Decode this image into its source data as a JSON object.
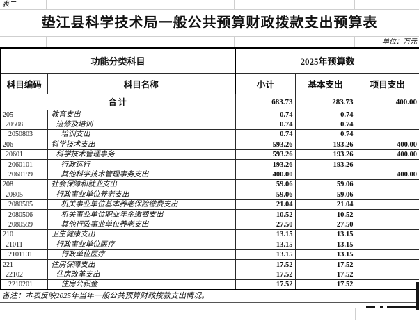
{
  "page": {
    "table_label": "表二",
    "title": "垫江县科学技术局一般公共预算财政拨款支出预算表",
    "unit_note": "单位：万元",
    "footer_note": "备注：本表反映2025年当年一般公共预算财政拨款支出情况。"
  },
  "colors": {
    "paper": "#ffffff",
    "ink": "#111111",
    "faint_grid": "#cfcfcf"
  },
  "table": {
    "header_group": {
      "left": "功能分类科目",
      "right": "2025年预算数"
    },
    "columns": [
      "科目编码",
      "科目名称",
      "小计",
      "基本支出",
      "项目支出"
    ],
    "total_row": {
      "label": "合计",
      "subtotal": "683.73",
      "basic": "283.73",
      "project": "400.00"
    },
    "rows": [
      {
        "code": "205",
        "name": "教育支出",
        "level": 0,
        "subtotal": "0.74",
        "basic": "0.74",
        "project": ""
      },
      {
        "code": "20508",
        "name": "进修及培训",
        "level": 1,
        "subtotal": "0.74",
        "basic": "0.74",
        "project": ""
      },
      {
        "code": "2050803",
        "name": "培训支出",
        "level": 2,
        "subtotal": "0.74",
        "basic": "0.74",
        "project": ""
      },
      {
        "code": "206",
        "name": "科学技术支出",
        "level": 0,
        "subtotal": "593.26",
        "basic": "193.26",
        "project": "400.00"
      },
      {
        "code": "20601",
        "name": "科学技术管理事务",
        "level": 1,
        "subtotal": "593.26",
        "basic": "193.26",
        "project": "400.00"
      },
      {
        "code": "2060101",
        "name": "行政运行",
        "level": 2,
        "subtotal": "193.26",
        "basic": "193.26",
        "project": ""
      },
      {
        "code": "2060199",
        "name": "其他科学技术管理事务支出",
        "level": 2,
        "subtotal": "400.00",
        "basic": "",
        "project": "400.00"
      },
      {
        "code": "208",
        "name": "社会保障和就业支出",
        "level": 0,
        "subtotal": "59.06",
        "basic": "59.06",
        "project": ""
      },
      {
        "code": "20805",
        "name": "行政事业单位养老支出",
        "level": 1,
        "subtotal": "59.06",
        "basic": "59.06",
        "project": ""
      },
      {
        "code": "2080505",
        "name": "机关事业单位基本养老保险缴费支出",
        "level": 2,
        "subtotal": "21.04",
        "basic": "21.04",
        "project": ""
      },
      {
        "code": "2080506",
        "name": "机关事业单位职业年金缴费支出",
        "level": 2,
        "subtotal": "10.52",
        "basic": "10.52",
        "project": ""
      },
      {
        "code": "2080599",
        "name": "其他行政事业单位养老支出",
        "level": 2,
        "subtotal": "27.50",
        "basic": "27.50",
        "project": ""
      },
      {
        "code": "210",
        "name": "卫生健康支出",
        "level": 0,
        "subtotal": "13.15",
        "basic": "13.15",
        "project": ""
      },
      {
        "code": "21011",
        "name": "行政事业单位医疗",
        "level": 1,
        "subtotal": "13.15",
        "basic": "13.15",
        "project": ""
      },
      {
        "code": "2101101",
        "name": "行政单位医疗",
        "level": 2,
        "subtotal": "13.15",
        "basic": "13.15",
        "project": ""
      },
      {
        "code": "221",
        "name": "住房保障支出",
        "level": 0,
        "subtotal": "17.52",
        "basic": "17.52",
        "project": ""
      },
      {
        "code": "22102",
        "name": "住房改革支出",
        "level": 1,
        "subtotal": "17.52",
        "basic": "17.52",
        "project": ""
      },
      {
        "code": "2210201",
        "name": "住房公积金",
        "level": 2,
        "subtotal": "17.52",
        "basic": "17.52",
        "project": ""
      }
    ]
  }
}
